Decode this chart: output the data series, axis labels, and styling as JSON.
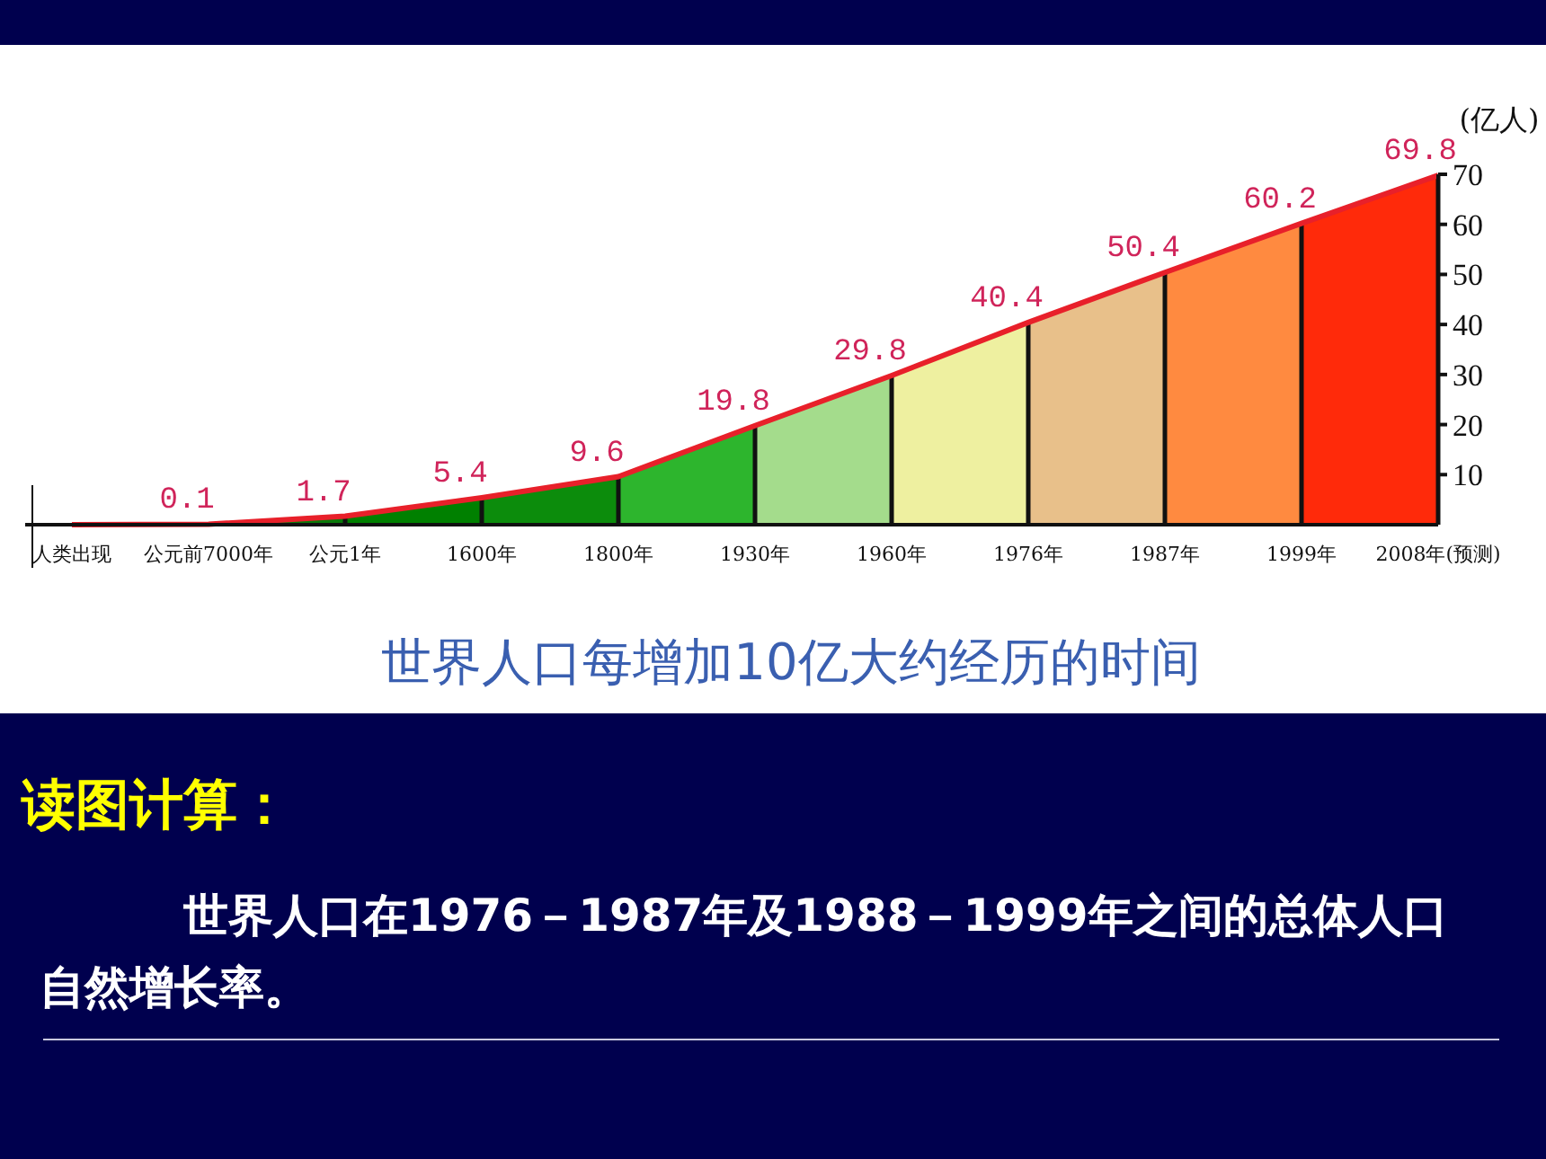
{
  "chart_data": {
    "type": "area",
    "title": "世界人口每增加10亿大约经历的时间",
    "ylabel": "(亿人)",
    "categories": [
      "人类出现",
      "公元前7000年",
      "公元1年",
      "1600年",
      "1800年",
      "1930年",
      "1960年",
      "1976年",
      "1987年",
      "1999年",
      "2008年(预测)"
    ],
    "values": [
      0,
      0.1,
      1.7,
      5.4,
      9.6,
      19.8,
      29.8,
      40.4,
      50.4,
      60.2,
      69.8
    ],
    "value_labels": [
      null,
      "0.1",
      "1.7",
      "5.4",
      "9.6",
      "19.8",
      "29.8",
      "40.4",
      "50.4",
      "60.2",
      "69.8"
    ],
    "color": "#e8202a",
    "colors": [
      "#e02020",
      "#c83020",
      "#0a7a0a",
      "#008000",
      "#0c8c0c",
      "#2db52d",
      "#a4dc8c",
      "#eef0a0",
      "#e8c08a",
      "#ff8a40",
      "#ff2a0a"
    ],
    "ylim": [
      0,
      70
    ],
    "yticks": [
      10,
      20,
      30,
      40,
      50,
      60,
      70
    ],
    "grid": "x",
    "annotations": [
      "读图计算：",
      "世界人口在1976－1987年及1988－1999年之间的总体人口自然增长率。"
    ]
  }
}
